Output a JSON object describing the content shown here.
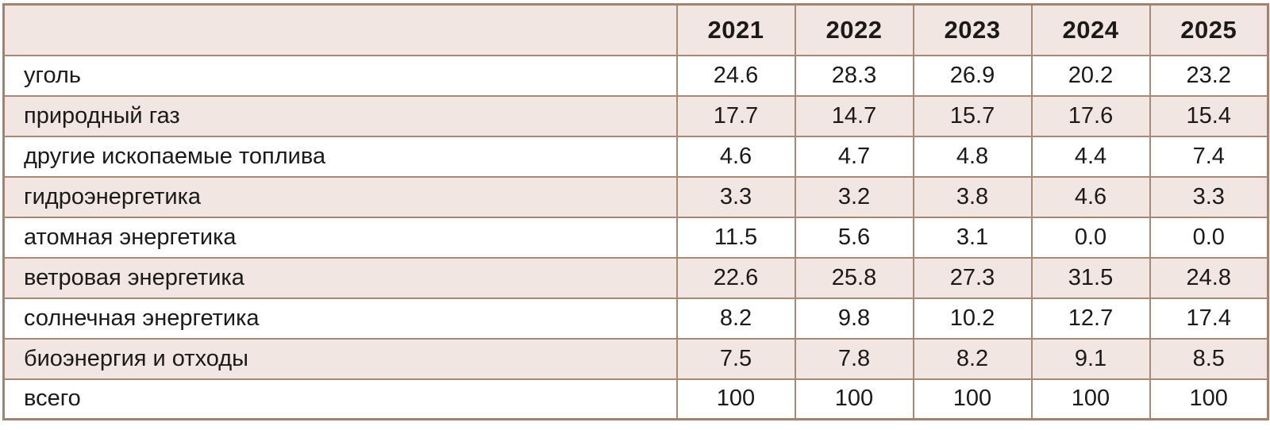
{
  "table": {
    "columns": [
      "",
      "2021",
      "2022",
      "2023",
      "2024",
      "2025"
    ],
    "rows": [
      {
        "label": "уголь",
        "values": [
          "24.6",
          "28.3",
          "26.9",
          "20.2",
          "23.2"
        ]
      },
      {
        "label": "природный газ",
        "values": [
          "17.7",
          "14.7",
          "15.7",
          "17.6",
          "15.4"
        ]
      },
      {
        "label": "другие ископаемые топлива",
        "values": [
          "4.6",
          "4.7",
          "4.8",
          "4.4",
          "7.4"
        ]
      },
      {
        "label": "гидроэнергетика",
        "values": [
          "3.3",
          "3.2",
          "3.8",
          "4.6",
          "3.3"
        ]
      },
      {
        "label": "атомная энергетика",
        "values": [
          "11.5",
          "5.6",
          "3.1",
          "0.0",
          "0.0"
        ]
      },
      {
        "label": "ветровая энергетика",
        "values": [
          "22.6",
          "25.8",
          "27.3",
          "31.5",
          "24.8"
        ]
      },
      {
        "label": "солнечная энергетика",
        "values": [
          "8.2",
          "9.8",
          "10.2",
          "12.7",
          "17.4"
        ]
      },
      {
        "label": "биоэнергия и отходы",
        "values": [
          "7.5",
          "7.8",
          "8.2",
          "9.1",
          "8.5"
        ]
      },
      {
        "label": "всего",
        "values": [
          "100",
          "100",
          "100",
          "100",
          "100"
        ]
      }
    ]
  },
  "colors": {
    "border": "#a88877",
    "outer_border": "#a3826f",
    "row_shaded": "#f1e6e1",
    "row_plain": "#ffffff",
    "text": "#1c1a19"
  },
  "chart_data": {
    "type": "table",
    "categories": [
      "2021",
      "2022",
      "2023",
      "2024",
      "2025"
    ],
    "series": [
      {
        "name": "уголь",
        "values": [
          24.6,
          28.3,
          26.9,
          20.2,
          23.2
        ]
      },
      {
        "name": "природный газ",
        "values": [
          17.7,
          14.7,
          15.7,
          17.6,
          15.4
        ]
      },
      {
        "name": "другие ископаемые топлива",
        "values": [
          4.6,
          4.7,
          4.8,
          4.4,
          7.4
        ]
      },
      {
        "name": "гидроэнергетика",
        "values": [
          3.3,
          3.2,
          3.8,
          4.6,
          3.3
        ]
      },
      {
        "name": "атомная энергетика",
        "values": [
          11.5,
          5.6,
          3.1,
          0.0,
          0.0
        ]
      },
      {
        "name": "ветровая энергетика",
        "values": [
          22.6,
          25.8,
          27.3,
          31.5,
          24.8
        ]
      },
      {
        "name": "солнечная энергетика",
        "values": [
          8.2,
          9.8,
          10.2,
          12.7,
          17.4
        ]
      },
      {
        "name": "биоэнергия и отходы",
        "values": [
          7.5,
          7.8,
          8.2,
          9.1,
          8.5
        ]
      },
      {
        "name": "всего",
        "values": [
          100,
          100,
          100,
          100,
          100
        ]
      }
    ],
    "title": "",
    "xlabel": "",
    "ylabel": "",
    "notes": "share of energy sources by year, percent; rows alternate white / light pink shading"
  }
}
